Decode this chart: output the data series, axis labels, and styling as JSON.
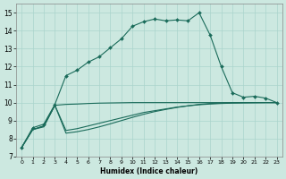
{
  "xlabel": "Humidex (Indice chaleur)",
  "bg_color": "#cce8e0",
  "grid_color": "#aad4cc",
  "line_color": "#1a6b5a",
  "xlim": [
    -0.5,
    23.5
  ],
  "ylim": [
    7,
    15.5
  ],
  "yticks": [
    7,
    8,
    9,
    10,
    11,
    12,
    13,
    14,
    15
  ],
  "xticks": [
    0,
    1,
    2,
    3,
    4,
    5,
    6,
    7,
    8,
    9,
    10,
    11,
    12,
    13,
    14,
    15,
    16,
    17,
    18,
    19,
    20,
    21,
    22,
    23
  ],
  "line1_x": [
    0,
    1,
    2,
    3,
    4,
    5,
    6,
    7,
    8,
    9,
    10,
    11,
    12,
    13,
    14,
    15,
    16,
    17,
    18,
    19,
    20,
    21,
    22,
    23
  ],
  "line1_y": [
    7.5,
    8.6,
    8.8,
    9.9,
    11.5,
    11.8,
    12.25,
    12.55,
    13.05,
    13.55,
    14.25,
    14.5,
    14.65,
    14.55,
    14.6,
    14.55,
    15.0,
    13.75,
    12.0,
    10.55,
    10.3,
    10.35,
    10.25,
    10.0
  ],
  "line2_x": [
    0,
    1,
    2,
    3,
    4,
    5,
    6,
    7,
    8,
    9,
    10,
    11,
    12,
    13,
    14,
    15,
    16,
    17,
    18,
    19,
    20,
    21,
    22,
    23
  ],
  "line2_y": [
    7.5,
    8.5,
    8.7,
    9.85,
    9.9,
    9.92,
    9.95,
    9.97,
    9.98,
    9.99,
    10.0,
    10.0,
    10.0,
    10.0,
    10.0,
    10.0,
    10.0,
    10.0,
    10.0,
    10.0,
    10.0,
    10.0,
    10.0,
    10.0
  ],
  "line3_x": [
    0,
    1,
    2,
    3,
    4,
    5,
    6,
    7,
    8,
    9,
    10,
    11,
    12,
    13,
    14,
    15,
    16,
    17,
    18,
    19,
    20,
    21,
    22,
    23
  ],
  "line3_y": [
    7.5,
    8.5,
    8.7,
    9.85,
    8.45,
    8.55,
    8.7,
    8.85,
    9.0,
    9.15,
    9.3,
    9.45,
    9.55,
    9.65,
    9.75,
    9.82,
    9.88,
    9.92,
    9.95,
    9.97,
    9.98,
    9.99,
    10.0,
    10.0
  ],
  "line4_x": [
    0,
    1,
    2,
    3,
    4,
    5,
    6,
    7,
    8,
    9,
    10,
    11,
    12,
    13,
    14,
    15,
    16,
    17,
    18,
    19,
    20,
    21,
    22,
    23
  ],
  "line4_y": [
    7.5,
    8.5,
    8.65,
    9.85,
    8.3,
    8.38,
    8.5,
    8.65,
    8.82,
    9.0,
    9.18,
    9.35,
    9.5,
    9.62,
    9.73,
    9.82,
    9.9,
    9.95,
    9.97,
    9.99,
    10.0,
    10.0,
    10.0,
    10.0
  ]
}
